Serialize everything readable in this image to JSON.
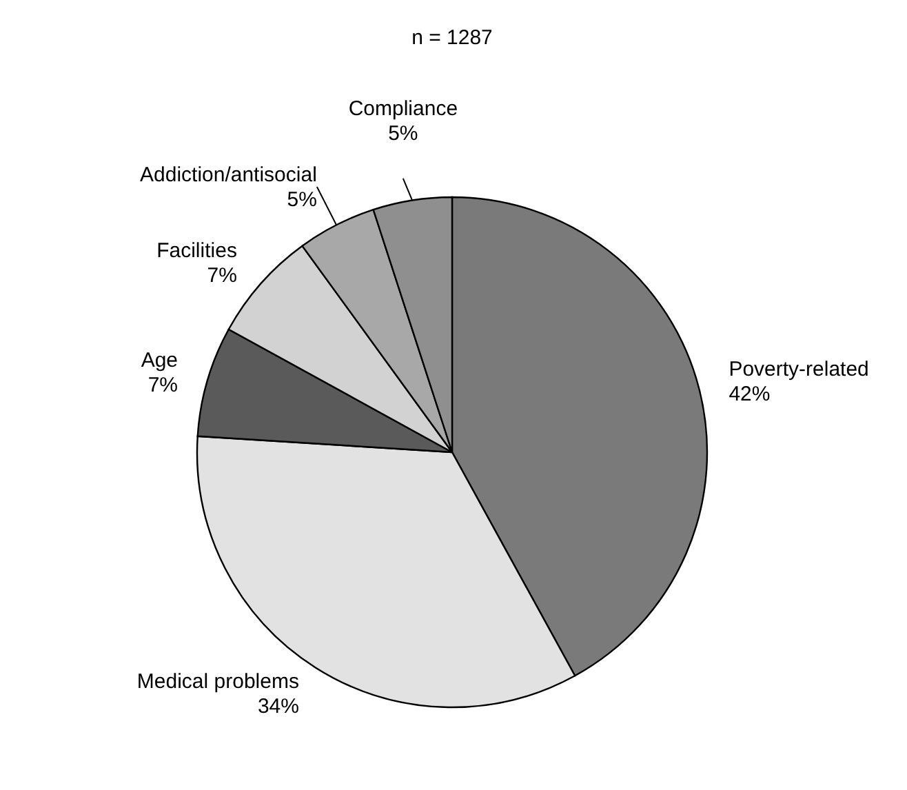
{
  "chart_data": {
    "type": "pie",
    "title": "n = 1287",
    "categories": [
      "Poverty-related",
      "Medical problems",
      "Age",
      "Facilities",
      "Addiction/antisocial",
      "Compliance"
    ],
    "values": [
      42,
      34,
      7,
      7,
      5,
      5
    ],
    "colors": [
      "#7a7a7a",
      "#e2e2e2",
      "#5a5a5a",
      "#d2d2d2",
      "#a8a8a8",
      "#8f8f8f"
    ],
    "value_labels": [
      "42%",
      "34%",
      "7%",
      "7%",
      "5%",
      "5%"
    ]
  }
}
